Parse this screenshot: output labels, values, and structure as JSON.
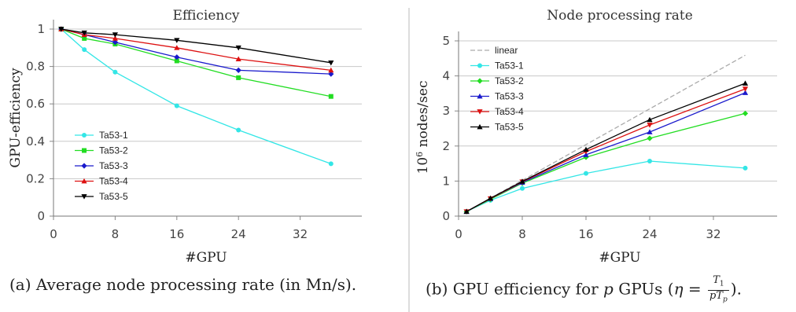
{
  "chart_data": [
    {
      "type": "line",
      "title": "Efficiency",
      "xlabel": "#GPU",
      "ylabel": "GPU-efficiency",
      "xlim": [
        0,
        40
      ],
      "ylim": [
        0,
        1.1
      ],
      "xticks": [
        "0",
        "8",
        "16",
        "24",
        "32"
      ],
      "yticks": [
        "0",
        "0.2",
        "0.4",
        "0.6",
        "0.8",
        "1"
      ],
      "x": [
        1,
        4,
        8,
        16,
        24,
        36
      ],
      "grid": "horizontal",
      "legend_position": "bottom-left",
      "series": [
        {
          "name": "Ta53-1",
          "color": "#33e6e6",
          "marker": "circle",
          "values": [
            1.0,
            0.89,
            0.77,
            0.59,
            0.46,
            0.28
          ]
        },
        {
          "name": "Ta53-2",
          "color": "#22dd22",
          "marker": "square",
          "values": [
            1.0,
            0.95,
            0.92,
            0.83,
            0.74,
            0.64
          ]
        },
        {
          "name": "Ta53-3",
          "color": "#1a1acc",
          "marker": "diamond",
          "values": [
            1.0,
            0.97,
            0.93,
            0.85,
            0.78,
            0.76
          ]
        },
        {
          "name": "Ta53-4",
          "color": "#dd1111",
          "marker": "triangle-up",
          "values": [
            1.0,
            0.97,
            0.95,
            0.9,
            0.84,
            0.78
          ]
        },
        {
          "name": "Ta53-5",
          "color": "#000000",
          "marker": "triangle-down",
          "values": [
            1.0,
            0.98,
            0.97,
            0.94,
            0.9,
            0.82
          ]
        }
      ]
    },
    {
      "type": "line",
      "title": "Node processing rate",
      "xlabel": "#GPU",
      "ylabel": "10^6 nodes/sec",
      "ylabel_base": "10",
      "ylabel_exp": "6",
      "ylabel_rest": " nodes/sec",
      "xlim": [
        0,
        40
      ],
      "ylim": [
        0,
        5
      ],
      "xticks": [
        "0",
        "8",
        "16",
        "24",
        "32"
      ],
      "yticks": [
        "0",
        "1",
        "2",
        "3",
        "4",
        "5"
      ],
      "x": [
        1,
        4,
        8,
        16,
        24,
        36
      ],
      "grid": "horizontal",
      "legend_position": "top-left",
      "series": [
        {
          "name": "linear",
          "color": "#aaaaaa",
          "marker": "none",
          "dashed": true,
          "values": [
            0.13,
            0.51,
            1.02,
            2.04,
            3.06,
            4.59
          ]
        },
        {
          "name": "Ta53-1",
          "color": "#33e6e6",
          "marker": "circle",
          "values": [
            0.13,
            0.45,
            0.79,
            1.22,
            1.57,
            1.37
          ]
        },
        {
          "name": "Ta53-2",
          "color": "#22dd22",
          "marker": "diamond",
          "values": [
            0.13,
            0.48,
            0.94,
            1.68,
            2.22,
            2.93
          ]
        },
        {
          "name": "Ta53-3",
          "color": "#1a1acc",
          "marker": "triangle-up",
          "values": [
            0.13,
            0.5,
            0.96,
            1.75,
            2.4,
            3.52
          ]
        },
        {
          "name": "Ta53-4",
          "color": "#dd1111",
          "marker": "triangle-down",
          "values": [
            0.13,
            0.5,
            0.98,
            1.84,
            2.6,
            3.63
          ]
        },
        {
          "name": "Ta53-5",
          "color": "#000000",
          "marker": "triangle-up",
          "values": [
            0.13,
            0.51,
            0.99,
            1.9,
            2.75,
            3.79
          ]
        }
      ]
    }
  ],
  "captions": {
    "left": {
      "prefix": "(a) Average node processing rate (in ",
      "unit": "Mn/s",
      "suffix": ")."
    },
    "right": {
      "prefix": "(b) GPU efficiency for ",
      "var": "p",
      "middle": " GPUs (",
      "eta": "η",
      "eq": " = ",
      "numerator": "T",
      "numerator_sub": "1",
      "denominator": "pT",
      "denominator_sub": "p",
      "suffix": ")."
    }
  }
}
